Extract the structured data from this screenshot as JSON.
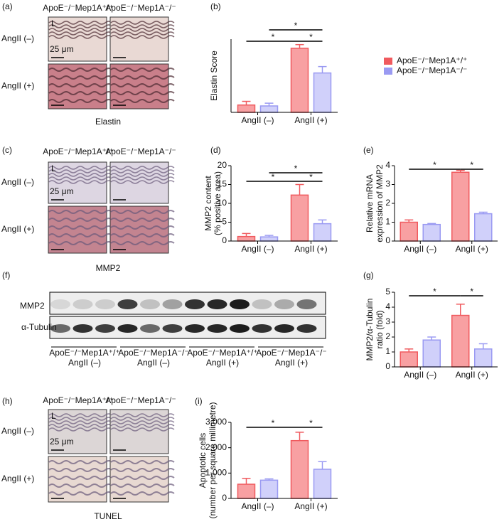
{
  "panels": {
    "labels": [
      "(a)",
      "(b)",
      "(c)",
      "(d)",
      "(e)",
      "(f)",
      "(g)",
      "(h)",
      "(i)"
    ]
  },
  "legend": [
    {
      "name": "ApoE⁻/⁻Mep1A⁺/⁺",
      "color": "#f05a5e"
    },
    {
      "name": "ApoE⁻/⁻Mep1A⁻/⁻",
      "color": "#9a9af2"
    }
  ],
  "histology": [
    {
      "columns": [
        "ApoE⁻/⁻Mep1A⁺/⁺",
        "ApoE⁻/⁻Mep1A⁻/⁻"
      ],
      "rows": [
        "AngII (–)",
        "AngII (+)"
      ],
      "lumen": "L",
      "scale": "25 μm",
      "stain": "Elastin"
    },
    {
      "columns": [
        "ApoE⁻/⁻Mep1A⁺/⁺",
        "ApoE⁻/⁻Mep1A⁻/⁻"
      ],
      "rows": [
        "AngII (–)",
        "AngII (+)"
      ],
      "lumen": "L",
      "scale": "25 μm",
      "stain": "MMP2"
    },
    {
      "columns": [
        "ApoE⁻/⁻Mep1A⁺/⁺",
        "ApoE⁻/⁻Mep1A⁻/⁻"
      ],
      "rows": [
        "AngII (–)",
        "AngII (+)"
      ],
      "lumen": "L",
      "scale": "25 μm",
      "stain": "TUNEL"
    }
  ],
  "blot": {
    "bands": [
      "MMP2",
      "α-Tubulin"
    ],
    "groups": [
      [
        "ApoE⁻/⁻Mep1A⁺/⁺",
        "AngII (–)"
      ],
      [
        "ApoE⁻/⁻Mep1A⁻/⁻",
        "AngII (–)"
      ],
      [
        "ApoE⁻/⁻Mep1A⁺/⁺",
        "AngII (+)"
      ],
      [
        "ApoE⁻/⁻Mep1A⁻/⁻",
        "AngII (+)"
      ]
    ]
  },
  "chart_data": [
    {
      "type": "bar",
      "ylabel": [
        "Elastin Score"
      ],
      "categories": [
        "AngII (–)",
        "AngII (+)"
      ],
      "ylim": [
        0,
        4
      ],
      "series": [
        {
          "color": "#f05a5e",
          "values": [
            0.4,
            3.5
          ],
          "errors": [
            0.2,
            0.2
          ]
        },
        {
          "color": "#9a9af2",
          "values": [
            0.35,
            2.15
          ],
          "errors": [
            0.15,
            0.35
          ]
        }
      ],
      "annotations": [
        "*",
        "*",
        "*"
      ]
    },
    {
      "type": "bar",
      "ylabel": [
        "MMP2 content",
        "(% positive area)"
      ],
      "categories": [
        "AngII (–)",
        "AngII (+)"
      ],
      "ylim": [
        0,
        20
      ],
      "yticks": [
        0,
        5,
        10,
        15,
        20
      ],
      "series": [
        {
          "color": "#f05a5e",
          "values": [
            1.2,
            12.2
          ],
          "errors": [
            0.8,
            2.8
          ]
        },
        {
          "color": "#9a9af2",
          "values": [
            1.1,
            4.6
          ],
          "errors": [
            0.4,
            1.0
          ]
        }
      ],
      "annotations": [
        "*",
        "*",
        "*"
      ]
    },
    {
      "type": "bar",
      "ylabel": [
        "Relative mRNA",
        "expression of MMP2"
      ],
      "categories": [
        "AngII (–)",
        "AngII (+)"
      ],
      "ylim": [
        0,
        4
      ],
      "yticks": [
        0,
        1,
        2,
        3,
        4
      ],
      "series": [
        {
          "color": "#f05a5e",
          "values": [
            1.0,
            3.65
          ],
          "errors": [
            0.12,
            0.1
          ]
        },
        {
          "color": "#9a9af2",
          "values": [
            0.88,
            1.45
          ],
          "errors": [
            0.05,
            0.08
          ]
        }
      ],
      "annotations": [
        "*",
        "*"
      ]
    },
    {
      "type": "bar",
      "ylabel": [
        "MMP2/α-Tubulin",
        "ratio (fold)"
      ],
      "categories": [
        "AngII (–)",
        "AngII (+)"
      ],
      "ylim": [
        0,
        5
      ],
      "yticks": [
        0,
        1,
        2,
        3,
        4,
        5
      ],
      "series": [
        {
          "color": "#f05a5e",
          "values": [
            1.0,
            3.45
          ],
          "errors": [
            0.2,
            0.75
          ]
        },
        {
          "color": "#9a9af2",
          "values": [
            1.8,
            1.2
          ],
          "errors": [
            0.2,
            0.35
          ]
        }
      ],
      "annotations": [
        "*",
        "*"
      ]
    },
    {
      "type": "bar",
      "ylabel": [
        "Apoptotic cells",
        "(number per square millimetre)"
      ],
      "categories": [
        "AngII (–)",
        "AngII (+)"
      ],
      "ylim": [
        0,
        3000
      ],
      "yticks": [
        0,
        {
          "value": 1000,
          "label": "1,000"
        },
        {
          "value": 2000,
          "label": "2,000"
        },
        {
          "value": 3000,
          "label": "3,000"
        }
      ],
      "series": [
        {
          "color": "#f05a5e",
          "values": [
            560,
            2280
          ],
          "errors": [
            230,
            330
          ]
        },
        {
          "color": "#9a9af2",
          "values": [
            720,
            1150
          ],
          "errors": [
            50,
            300
          ]
        }
      ],
      "annotations": [
        "*",
        "*"
      ]
    }
  ]
}
